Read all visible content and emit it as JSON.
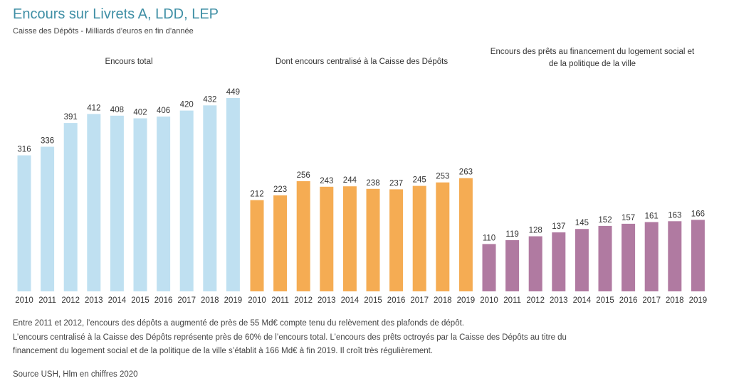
{
  "title": "Encours sur Livrets A, LDD, LEP",
  "subtitle": "Caisse des Dépôts - Milliards d’euros en fin d’année",
  "notes": [
    "Entre 2011 et 2012, l’encours des dépôts a augmenté de près de 55 Md€ compte tenu du relèvement des plafonds de dépôt.",
    "L’encours centralisé à la Caisse des Dépôts représente près de 60% de l’encours total. L’encours des prêts octroyés par la Caisse des Dépôts au titre du",
    "financement du logement social et de la politique de la ville s’établit à 166 Md€ à fin 2019. Il croît très régulièrement."
  ],
  "source": "Source USH, Hlm en chiffres 2020",
  "chart_data": {
    "type": "bar",
    "categories": [
      "2010",
      "2011",
      "2012",
      "2013",
      "2014",
      "2015",
      "2016",
      "2017",
      "2018",
      "2019"
    ],
    "ylim": [
      0,
      449
    ],
    "grid": false,
    "series": [
      {
        "name": "Encours total",
        "label_lines": [
          "Encours total"
        ],
        "color": "#bfe0f1",
        "values": [
          316,
          336,
          391,
          412,
          408,
          402,
          406,
          420,
          432,
          449
        ]
      },
      {
        "name": "Dont encours centralisé à la Caisse des Dépôts",
        "label_lines": [
          "Dont encours centralisé à la Caisse des Dépôts"
        ],
        "color": "#f5ac53",
        "values": [
          212,
          223,
          256,
          243,
          244,
          238,
          237,
          245,
          253,
          263
        ]
      },
      {
        "name": "Encours des prêts au financement du logement social et de la politique de la ville",
        "label_lines": [
          "Encours des prêts au financement du logement social et",
          "de la politique de la ville"
        ],
        "color": "#b07aa1",
        "values": [
          110,
          119,
          128,
          137,
          145,
          152,
          157,
          161,
          163,
          166
        ]
      }
    ]
  }
}
